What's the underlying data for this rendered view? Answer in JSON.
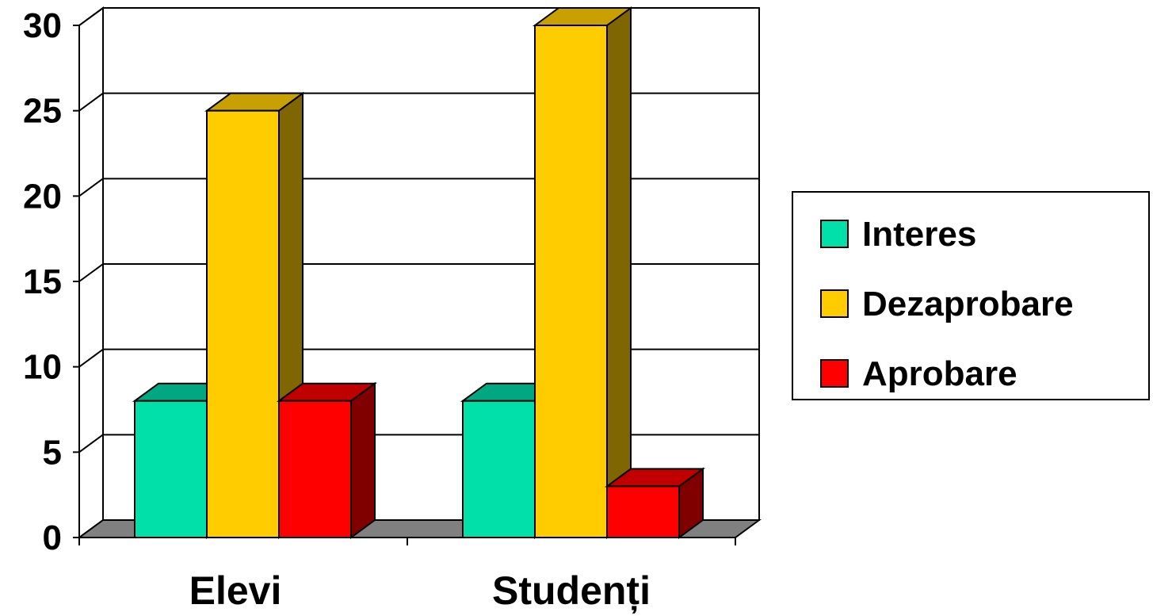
{
  "chart_data": {
    "type": "bar",
    "title": "",
    "xlabel": "",
    "ylabel": "",
    "ylim": [
      0,
      30
    ],
    "yticks": [
      "0",
      "5",
      "10",
      "15",
      "20",
      "25",
      "30"
    ],
    "categories": [
      "Elevi",
      "Studenți"
    ],
    "series": [
      {
        "name": "Interes",
        "values": [
          8,
          8
        ],
        "color": "#00E0A8",
        "top_color": "#00A882",
        "side_color": "#008066"
      },
      {
        "name": "Dezaprobare",
        "values": [
          25,
          30
        ],
        "color": "#FFCC00",
        "top_color": "#C8A000",
        "side_color": "#806600"
      },
      {
        "name": "Aprobare",
        "values": [
          8,
          3
        ],
        "color": "#FF0000",
        "top_color": "#C00000",
        "side_color": "#800000"
      }
    ],
    "grid": true,
    "legend_position": "right",
    "style": "3d-clustered-column"
  }
}
